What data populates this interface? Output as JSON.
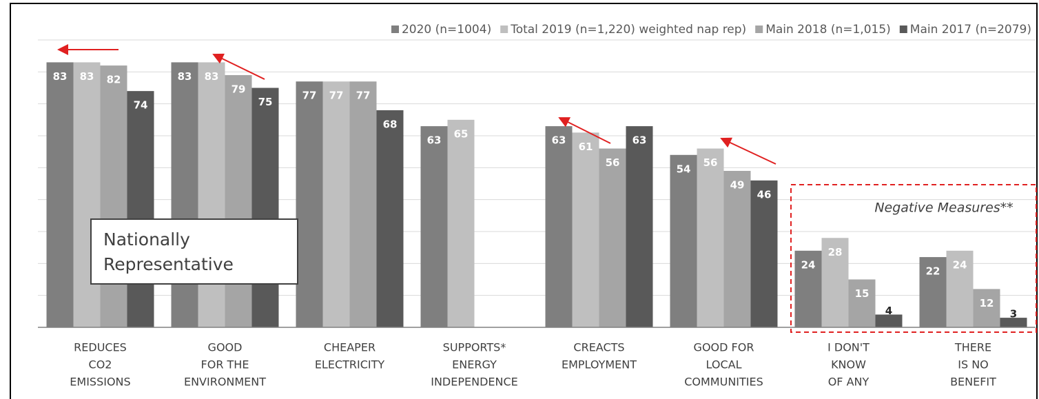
{
  "chart_data": {
    "type": "bar",
    "categories": [
      [
        "REDUCES",
        "CO2",
        "EMISSIONS"
      ],
      [
        "GOOD",
        "FOR THE",
        "ENVIRONMENT"
      ],
      [
        "CHEAPER",
        "ELECTRICITY"
      ],
      [
        "SUPPORTS*",
        "ENERGY",
        "INDEPENDENCE"
      ],
      [
        "CREACTS",
        "EMPLOYMENT"
      ],
      [
        "GOOD FOR",
        "LOCAL",
        "COMMUNITIES"
      ],
      [
        "I DON'T",
        "KNOW",
        "OF ANY"
      ],
      [
        "THERE",
        "IS NO",
        "BENEFIT"
      ]
    ],
    "series": [
      {
        "name": "2020 (n=1004)",
        "color": "#7f7f7f",
        "values": [
          83,
          83,
          77,
          63,
          63,
          54,
          24,
          22
        ]
      },
      {
        "name": "Total 2019 (n=1,220) weighted nap rep)",
        "color": "#bfbfbf",
        "values": [
          83,
          83,
          77,
          65,
          61,
          56,
          28,
          24
        ]
      },
      {
        "name": "Main 2018 (n=1,015)",
        "color": "#a5a5a5",
        "values": [
          82,
          79,
          77,
          null,
          56,
          49,
          15,
          12
        ]
      },
      {
        "name": "Main 2017 (n=2079)",
        "color": "#595959",
        "values": [
          74,
          75,
          68,
          null,
          63,
          46,
          4,
          3
        ]
      }
    ],
    "ylim": [
      0,
      90
    ],
    "yticks": [
      0,
      10,
      20,
      30,
      40,
      50,
      60,
      70,
      80,
      90
    ],
    "grid": true,
    "annotations": [
      "Nationally",
      "Representative",
      "Negative Measures**"
    ]
  }
}
